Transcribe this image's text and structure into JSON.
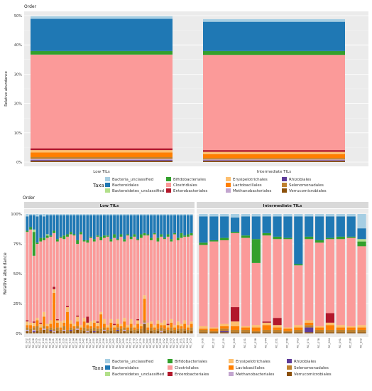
{
  "chart_data": [
    {
      "type": "bar",
      "stacked": true,
      "title": "Order",
      "ylabel": "Relative abundance",
      "ylim": [
        0,
        50
      ],
      "yticks": [
        "0%",
        "10%",
        "20%",
        "30%",
        "40%",
        "50%"
      ],
      "grid": true,
      "categories": [
        "Low TILs",
        "Intermediate TILs"
      ],
      "legend": {
        "title": "Taxa",
        "placement": "bottom"
      },
      "series": [
        {
          "name": "Verrucomicrobiales",
          "color": "#8c510a",
          "values": [
            0.4,
            0.4
          ]
        },
        {
          "name": "Rhizobiales",
          "color": "#5e3c99",
          "values": [
            0.3,
            0.2
          ]
        },
        {
          "name": "Methanobacteriales",
          "color": "#c2a5cf",
          "values": [
            0.4,
            0.3
          ]
        },
        {
          "name": "Selenomonadales",
          "color": "#bf812d",
          "values": [
            0.6,
            0.5
          ]
        },
        {
          "name": "Lactobacillales",
          "color": "#ff7f00",
          "values": [
            1.6,
            1.3
          ]
        },
        {
          "name": "Erysipelotrichales",
          "color": "#fdbf6f",
          "values": [
            0.8,
            0.8
          ]
        },
        {
          "name": "Enterobacteriales",
          "color": "#b2182b",
          "values": [
            0.6,
            0.6
          ]
        },
        {
          "name": "Clostridiales",
          "color": "#fb9a99",
          "values": [
            32.0,
            32.5
          ]
        },
        {
          "name": "Bifidobacteriales",
          "color": "#33a02c",
          "values": [
            1.2,
            1.3
          ]
        },
        {
          "name": "Bacteroidetes_unclassified",
          "color": "#b2df8a",
          "values": [
            0.0,
            0.0
          ]
        },
        {
          "name": "Bacteroidales",
          "color": "#1f78b4",
          "values": [
            11.0,
            10.0
          ]
        },
        {
          "name": "Bacteria_unclassified",
          "color": "#a6cee3",
          "values": [
            0.9,
            0.9
          ]
        }
      ]
    },
    {
      "type": "bar",
      "stacked": true,
      "title": "Order",
      "ylabel": "Relative abundance",
      "ylim": [
        0,
        100
      ],
      "yticks": [
        "0%",
        "25%",
        "50%",
        "75%",
        "100%"
      ],
      "facets": [
        "Low TILs",
        "Intermediate TILs"
      ],
      "legend": {
        "title": "Taxa",
        "placement": "bottom"
      },
      "samples_low": [
        "RC_002",
        "RC_005",
        "RC_008",
        "RC_009",
        "RC_011",
        "RC_014",
        "RC_016",
        "RC_018",
        "RC_021",
        "RC_024",
        "RC_026",
        "RC_029",
        "RC_030",
        "RC_033",
        "RC_034",
        "RC_036",
        "RC_039",
        "RC_042",
        "RC_045",
        "RC_047",
        "RC_050",
        "RC_052",
        "RC_053",
        "RC_056",
        "RC_057",
        "RC_060",
        "RC_062",
        "RC_064",
        "RC_067",
        "RC_069",
        "RC_070",
        "RC_073",
        "RC_075",
        "RC_077",
        "RC_079",
        "RC_080",
        "RC_082",
        "RC_085",
        "RC_086",
        "RC_088",
        "RC_090",
        "RC_092",
        "RC_094",
        "RC_095",
        "RC_097",
        "RC_099",
        "RC_101",
        "RC_103",
        "RC_104",
        "RC_105"
      ],
      "samples_int": [
        "RC_006",
        "RC_012",
        "RC_019",
        "RC_025",
        "RC_031",
        "RC_038",
        "RC_044",
        "RC_051",
        "RC_058",
        "RC_063",
        "RC_071",
        "RC_078",
        "RC_084",
        "RC_091",
        "RC_098",
        "RC_102"
      ],
      "order": [
        "Verrucomicrobiales",
        "Rhizobiales",
        "Methanobacteriales",
        "Selenomonadales",
        "Lactobacillales",
        "Erysipelotrichales",
        "Enterobacteriales",
        "Clostridiales",
        "Bifidobacteriales",
        "Bacteroidetes_unclassified",
        "Bacteroidales",
        "Bacteria_unclassified"
      ],
      "values_low": [
        [
          2,
          0,
          1,
          2,
          2,
          3,
          1,
          74,
          1,
          0,
          12,
          2
        ],
        [
          1,
          0,
          0,
          3,
          3,
          2,
          0,
          78,
          2,
          0,
          10,
          1
        ],
        [
          1,
          1,
          1,
          2,
          1,
          3,
          1,
          55,
          20,
          2,
          12,
          1
        ],
        [
          2,
          0,
          0,
          4,
          5,
          2,
          0,
          62,
          1,
          0,
          22,
          2
        ],
        [
          1,
          0,
          0,
          2,
          2,
          3,
          1,
          68,
          3,
          0,
          19,
          1
        ],
        [
          3,
          0,
          1,
          2,
          8,
          4,
          0,
          60,
          2,
          0,
          18,
          2
        ],
        [
          1,
          0,
          0,
          3,
          2,
          2,
          0,
          72,
          2,
          1,
          16,
          1
        ],
        [
          2,
          1,
          0,
          2,
          3,
          3,
          0,
          70,
          1,
          0,
          17,
          1
        ],
        [
          1,
          0,
          1,
          2,
          30,
          3,
          2,
          45,
          2,
          0,
          13,
          1
        ],
        [
          2,
          0,
          0,
          3,
          4,
          2,
          1,
          65,
          2,
          0,
          20,
          1
        ],
        [
          1,
          0,
          0,
          2,
          2,
          5,
          0,
          70,
          1,
          0,
          18,
          1
        ],
        [
          2,
          0,
          1,
          3,
          3,
          2,
          0,
          68,
          3,
          0,
          17,
          1
        ],
        [
          1,
          0,
          0,
          2,
          15,
          4,
          1,
          58,
          2,
          0,
          16,
          1
        ],
        [
          2,
          1,
          0,
          2,
          3,
          3,
          0,
          72,
          2,
          0,
          14,
          1
        ],
        [
          1,
          0,
          0,
          3,
          2,
          2,
          0,
          74,
          1,
          0,
          16,
          1
        ],
        [
          3,
          0,
          1,
          2,
          4,
          4,
          1,
          60,
          3,
          0,
          21,
          1
        ],
        [
          1,
          0,
          0,
          2,
          2,
          2,
          0,
          76,
          2,
          0,
          14,
          1
        ],
        [
          2,
          0,
          0,
          3,
          5,
          3,
          0,
          64,
          1,
          0,
          21,
          1
        ],
        [
          1,
          0,
          1,
          2,
          3,
          2,
          5,
          62,
          2,
          0,
          21,
          1
        ],
        [
          2,
          0,
          0,
          2,
          2,
          4,
          0,
          70,
          1,
          0,
          18,
          1
        ],
        [
          1,
          1,
          0,
          3,
          4,
          2,
          0,
          66,
          2,
          0,
          20,
          1
        ],
        [
          2,
          0,
          0,
          2,
          2,
          3,
          1,
          71,
          1,
          0,
          17,
          1
        ],
        [
          1,
          0,
          0,
          3,
          12,
          2,
          0,
          60,
          3,
          0,
          18,
          1
        ],
        [
          2,
          0,
          1,
          2,
          3,
          4,
          0,
          68,
          2,
          0,
          17,
          1
        ],
        [
          1,
          0,
          0,
          2,
          2,
          2,
          0,
          74,
          1,
          0,
          17,
          1
        ],
        [
          2,
          0,
          0,
          3,
          4,
          3,
          0,
          65,
          2,
          0,
          20,
          1
        ],
        [
          1,
          0,
          0,
          2,
          2,
          2,
          1,
          72,
          3,
          0,
          16,
          1
        ],
        [
          2,
          1,
          0,
          2,
          3,
          4,
          0,
          66,
          1,
          0,
          20,
          1
        ],
        [
          1,
          0,
          0,
          3,
          2,
          2,
          0,
          73,
          2,
          0,
          16,
          1
        ],
        [
          2,
          0,
          1,
          2,
          5,
          3,
          0,
          64,
          2,
          0,
          20,
          1
        ],
        [
          1,
          0,
          0,
          2,
          2,
          2,
          0,
          75,
          1,
          0,
          16,
          1
        ],
        [
          2,
          0,
          0,
          3,
          3,
          4,
          0,
          67,
          2,
          0,
          18,
          1
        ],
        [
          1,
          0,
          0,
          2,
          2,
          2,
          0,
          74,
          2,
          0,
          16,
          1
        ],
        [
          2,
          0,
          0,
          2,
          4,
          3,
          1,
          66,
          1,
          0,
          20,
          1
        ],
        [
          1,
          0,
          0,
          3,
          2,
          2,
          0,
          72,
          3,
          0,
          16,
          1
        ],
        [
          8,
          0,
          1,
          2,
          18,
          3,
          0,
          50,
          2,
          0,
          15,
          1
        ],
        [
          1,
          0,
          0,
          2,
          2,
          4,
          0,
          73,
          1,
          0,
          16,
          1
        ],
        [
          2,
          0,
          0,
          3,
          3,
          2,
          0,
          68,
          2,
          0,
          19,
          1
        ],
        [
          1,
          0,
          0,
          2,
          2,
          2,
          0,
          76,
          1,
          0,
          15,
          1
        ],
        [
          2,
          0,
          0,
          2,
          4,
          3,
          0,
          66,
          3,
          0,
          19,
          1
        ],
        [
          1,
          0,
          1,
          3,
          2,
          2,
          0,
          72,
          2,
          0,
          16,
          1
        ],
        [
          2,
          0,
          0,
          2,
          3,
          4,
          0,
          68,
          1,
          0,
          19,
          1
        ],
        [
          1,
          0,
          0,
          2,
          2,
          2,
          1,
          73,
          2,
          0,
          16,
          1
        ],
        [
          2,
          0,
          0,
          3,
          4,
          3,
          0,
          65,
          2,
          0,
          20,
          1
        ],
        [
          1,
          0,
          0,
          2,
          2,
          2,
          0,
          76,
          1,
          0,
          15,
          1
        ],
        [
          2,
          0,
          0,
          2,
          3,
          3,
          0,
          68,
          2,
          0,
          19,
          1
        ],
        [
          1,
          0,
          0,
          3,
          2,
          2,
          0,
          72,
          4,
          0,
          15,
          1
        ],
        [
          2,
          0,
          0,
          2,
          4,
          3,
          0,
          70,
          1,
          0,
          17,
          1
        ],
        [
          1,
          0,
          0,
          2,
          2,
          2,
          0,
          74,
          2,
          0,
          16,
          1
        ],
        [
          2,
          0,
          0,
          3,
          3,
          2,
          0,
          72,
          2,
          0,
          15,
          1
        ]
      ],
      "values_int": [
        [
          1,
          0,
          0,
          2,
          1,
          2,
          0,
          68,
          2,
          0,
          22,
          2
        ],
        [
          1,
          0,
          0,
          1,
          2,
          1,
          0,
          72,
          1,
          0,
          20,
          2
        ],
        [
          1,
          1,
          0,
          2,
          2,
          2,
          0,
          70,
          2,
          0,
          18,
          2
        ],
        [
          1,
          0,
          0,
          2,
          3,
          4,
          12,
          62,
          1,
          0,
          12,
          3
        ],
        [
          1,
          0,
          0,
          2,
          2,
          1,
          0,
          74,
          2,
          0,
          16,
          2
        ],
        [
          1,
          0,
          0,
          1,
          3,
          2,
          0,
          52,
          20,
          0,
          19,
          2
        ],
        [
          1,
          0,
          0,
          2,
          4,
          2,
          1,
          72,
          2,
          0,
          14,
          2
        ],
        [
          1,
          0,
          0,
          2,
          2,
          2,
          6,
          66,
          2,
          0,
          17,
          2
        ],
        [
          1,
          0,
          0,
          1,
          2,
          1,
          0,
          74,
          1,
          0,
          18,
          2
        ],
        [
          1,
          0,
          0,
          2,
          2,
          2,
          0,
          50,
          1,
          0,
          40,
          2
        ],
        [
          1,
          4,
          0,
          2,
          2,
          2,
          0,
          68,
          2,
          0,
          17,
          2
        ],
        [
          1,
          0,
          0,
          2,
          2,
          1,
          0,
          70,
          2,
          0,
          20,
          2
        ],
        [
          1,
          0,
          0,
          2,
          4,
          2,
          8,
          62,
          1,
          0,
          18,
          2
        ],
        [
          1,
          0,
          0,
          2,
          2,
          2,
          0,
          72,
          2,
          0,
          17,
          2
        ],
        [
          1,
          0,
          0,
          2,
          2,
          1,
          0,
          74,
          1,
          0,
          17,
          2
        ],
        [
          1,
          0,
          0,
          2,
          2,
          2,
          0,
          66,
          4,
          2,
          9,
          12
        ]
      ]
    }
  ]
}
